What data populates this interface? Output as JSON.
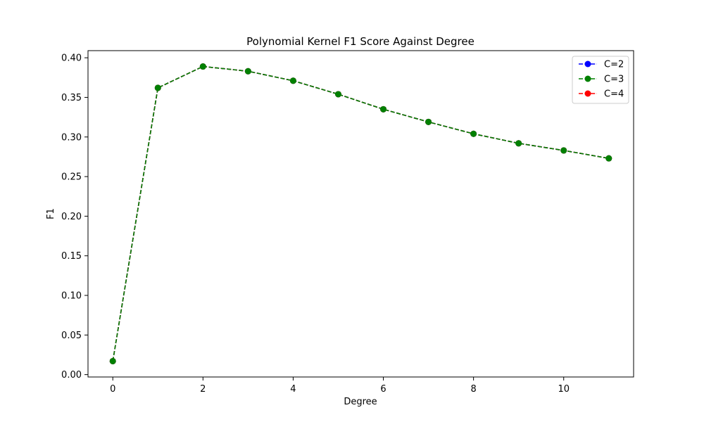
{
  "chart_data": {
    "type": "line",
    "title": "Polynomial Kernel F1 Score Against Degree",
    "xlabel": "Degree",
    "ylabel": "F1",
    "xlim": [
      -0.55,
      11.55
    ],
    "ylim": [
      -0.003,
      0.409
    ],
    "xticks": [
      0,
      2,
      4,
      6,
      8,
      10
    ],
    "xtick_labels": [
      "0",
      "2",
      "4",
      "6",
      "8",
      "10"
    ],
    "yticks": [
      0.0,
      0.05,
      0.1,
      0.15,
      0.2,
      0.25,
      0.3,
      0.35,
      0.4
    ],
    "ytick_labels": [
      "0.00",
      "0.05",
      "0.10",
      "0.15",
      "0.20",
      "0.25",
      "0.30",
      "0.35",
      "0.40"
    ],
    "grid": false,
    "legend_position": "top-right",
    "x": [
      0,
      1,
      2,
      3,
      4,
      5,
      6,
      7,
      8,
      9,
      10,
      11
    ],
    "series": [
      {
        "name": "C=2",
        "color": "#0000ff",
        "style": "dashed",
        "marker": "circle",
        "values": [
          0.017,
          0.362,
          0.389,
          0.383,
          0.371,
          0.354,
          0.335,
          0.319,
          0.304,
          0.292,
          0.283,
          0.273
        ]
      },
      {
        "name": "C=3",
        "color": "#008000",
        "style": "dashed",
        "marker": "circle",
        "values": [
          0.017,
          0.362,
          0.389,
          0.383,
          0.371,
          0.354,
          0.335,
          0.319,
          0.304,
          0.292,
          0.283,
          0.273
        ]
      },
      {
        "name": "C=4",
        "color": "#ff0000",
        "style": "dashed",
        "marker": "circle",
        "values": [
          0.017,
          0.362,
          0.389,
          0.383,
          0.371,
          0.354,
          0.335,
          0.319,
          0.304,
          0.292,
          0.283,
          0.273
        ]
      }
    ],
    "visible_series_order": [
      "C=2",
      "C=4",
      "C=3"
    ]
  }
}
